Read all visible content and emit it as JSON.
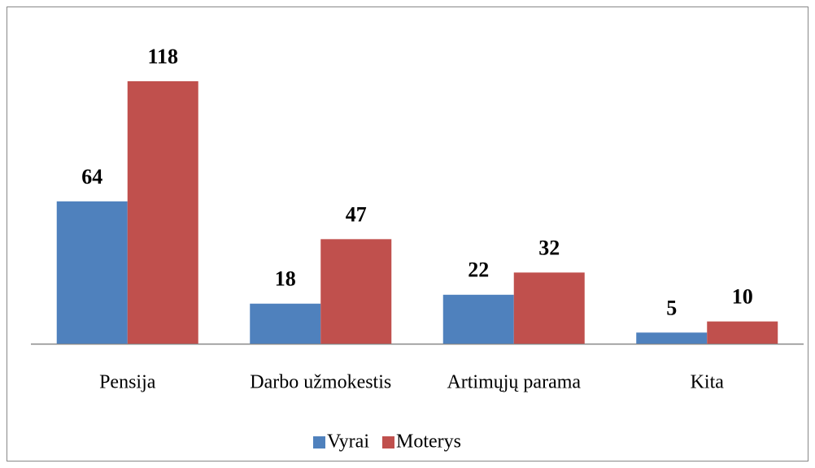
{
  "chart_data": {
    "type": "bar",
    "categories": [
      "Pensija",
      "Darbo užmokestis",
      "Artimųjų parama",
      "Kita"
    ],
    "series": [
      {
        "name": "Vyrai",
        "color": "#4f81bd",
        "values": [
          64,
          18,
          22,
          5
        ]
      },
      {
        "name": "Moterys",
        "color": "#c0504d",
        "values": [
          118,
          47,
          32,
          10
        ]
      }
    ],
    "legend": "bottom"
  }
}
